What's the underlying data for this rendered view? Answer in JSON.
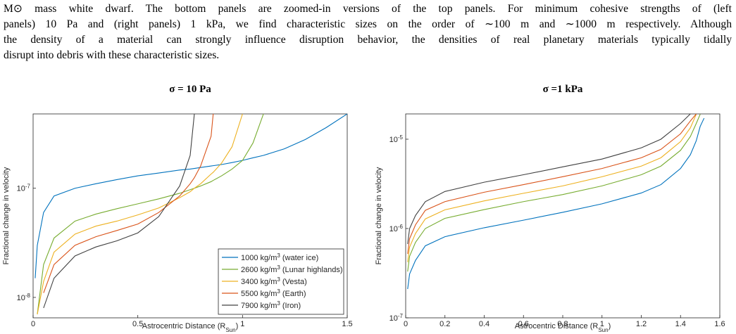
{
  "caption": [
    "M⊙ mass white dwarf. The bottom panels are zoomed-in versions of the top panels. For minimum cohesive strengths of (left",
    "panels) 10 Pa and (right panels) 1 kPa, we find characteristic sizes on the order of ∼100 m and ∼1000 m respectively. Although",
    "the density of a material can strongly influence disruption behavior, the densities of real planetary materials typically tidally",
    "disrupt into debris with these characteristic sizes."
  ],
  "chart_data": [
    {
      "type": "line",
      "title": "σ = 10 Pa",
      "xlabel": "Astrocentric Distance (RSun)",
      "ylabel": "Fractional change in velocity",
      "ylog": true,
      "legend": "lower right",
      "xlim": [
        0,
        1.5
      ],
      "xticks": [
        0,
        0.5,
        1,
        1.5
      ],
      "ylim": [
        6.5e-09,
        4.8e-07
      ],
      "yticks": [
        {
          "value": 1e-08,
          "label": "10-8"
        },
        {
          "value": 1e-07,
          "label": "10-7"
        }
      ],
      "x": [
        0.01,
        0.02,
        0.05,
        0.1,
        0.2,
        0.3,
        0.4,
        0.5,
        0.6,
        0.7,
        0.75,
        0.77,
        0.8,
        0.85,
        0.86,
        0.9,
        0.95,
        1.0,
        1.05,
        1.1,
        1.2,
        1.3,
        1.4,
        1.5
      ],
      "series": [
        {
          "name": "1000 kg/m3 (water ice)",
          "color": "#0072BD",
          "values": [
            1.5e-08,
            3e-08,
            6e-08,
            8.5e-08,
            1e-07,
            1.1e-07,
            1.2e-07,
            1.3e-07,
            1.38e-07,
            1.47e-07,
            1.5e-07,
            1.52e-07,
            1.55e-07,
            1.6e-07,
            1.61e-07,
            1.65e-07,
            1.72e-07,
            1.8e-07,
            1.9e-07,
            2e-07,
            2.3e-07,
            2.8e-07,
            3.6e-07,
            4.8e-07
          ]
        },
        {
          "name": "2600 kg/m3 (Lunar highlands)",
          "color": "#77AC30",
          "values": [
            null,
            7e-09,
            2e-08,
            3.5e-08,
            5e-08,
            5.8e-08,
            6.5e-08,
            7.2e-08,
            8e-08,
            9e-08,
            9.7e-08,
            1e-07,
            1.05e-07,
            1.15e-07,
            1.18e-07,
            1.3e-07,
            1.5e-07,
            1.8e-07,
            2.6e-07,
            4.8e-07,
            null,
            null,
            null,
            null
          ]
        },
        {
          "name": "3400 kg/m3 (Vesta)",
          "color": "#EDB120",
          "values": [
            null,
            7e-09,
            1.4e-08,
            2.6e-08,
            3.8e-08,
            4.5e-08,
            5e-08,
            5.7e-08,
            6.6e-08,
            8.2e-08,
            9.3e-08,
            1e-07,
            1.1e-07,
            1.35e-07,
            1.4e-07,
            1.7e-07,
            2.4e-07,
            4.8e-07,
            null,
            null,
            null,
            null,
            null,
            null
          ]
        },
        {
          "name": "5500 kg/m3 (Earth)",
          "color": "#D95319",
          "values": [
            null,
            null,
            1.1e-08,
            2e-08,
            3e-08,
            3.6e-08,
            4.1e-08,
            4.7e-08,
            6e-08,
            8.5e-08,
            1.1e-07,
            1.25e-07,
            1.6e-07,
            3e-07,
            4.8e-07,
            null,
            null,
            null,
            null,
            null,
            null,
            null,
            null,
            null
          ]
        },
        {
          "name": "7900 kg/m3 (Iron)",
          "color": "#404040",
          "values": [
            null,
            null,
            8e-09,
            1.5e-08,
            2.4e-08,
            2.9e-08,
            3.3e-08,
            3.9e-08,
            5.5e-08,
            1.05e-07,
            2e-07,
            4.8e-07,
            null,
            null,
            null,
            null,
            null,
            null,
            null,
            null,
            null,
            null,
            null,
            null
          ]
        }
      ]
    },
    {
      "type": "line",
      "title": "σ =1 kPa",
      "xlabel": "Astrocentric Distance (RSun)",
      "ylabel": "Fractional change in velocity",
      "ylog": true,
      "xlim": [
        0,
        1.6
      ],
      "xticks": [
        0,
        0.2,
        0.4,
        0.6,
        0.8,
        1,
        1.2,
        1.4,
        1.6
      ],
      "ylim": [
        1e-07,
        1.92e-05
      ],
      "yticks": [
        {
          "value": 1e-07,
          "label": "10-7"
        },
        {
          "value": 1e-06,
          "label": "10-6"
        },
        {
          "value": 1e-05,
          "label": "10-5"
        }
      ],
      "x": [
        0.01,
        0.02,
        0.05,
        0.1,
        0.2,
        0.4,
        0.6,
        0.8,
        1.0,
        1.2,
        1.3,
        1.4,
        1.45,
        1.48,
        1.5,
        1.52
      ],
      "series": [
        {
          "color": "#0072BD",
          "values": [
            2.1e-07,
            3.1e-07,
            4.4e-07,
            6.4e-07,
            8.1e-07,
            1.02e-06,
            1.24e-06,
            1.52e-06,
            1.89e-06,
            2.5e-06,
            3.1e-06,
            4.7e-06,
            6.7e-06,
            9.6e-06,
            1.39e-05,
            1.72e-05
          ]
        },
        {
          "color": "#77AC30",
          "values": [
            3.3e-07,
            4.9e-07,
            7e-07,
            1e-06,
            1.3e-06,
            1.63e-06,
            2e-06,
            2.4e-06,
            3e-06,
            4e-06,
            5e-06,
            7.5e-06,
            1.07e-05,
            1.5e-05,
            1.9e-05,
            null
          ]
        },
        {
          "color": "#EDB120",
          "values": [
            4.2e-07,
            6.2e-07,
            8.8e-07,
            1.28e-06,
            1.62e-06,
            2.04e-06,
            2.48e-06,
            3e-06,
            3.8e-06,
            5e-06,
            6.2e-06,
            9.4e-06,
            1.34e-05,
            1.9e-05,
            null,
            null
          ]
        },
        {
          "color": "#D95319",
          "values": [
            5.2e-07,
            7.7e-07,
            1.1e-06,
            1.6e-06,
            2e-06,
            2.55e-06,
            3.1e-06,
            3.8e-06,
            4.7e-06,
            6.2e-06,
            7.7e-06,
            1.15e-05,
            1.6e-05,
            1.92e-05,
            null,
            null
          ]
        },
        {
          "color": "#404040",
          "values": [
            6.7e-07,
            1e-06,
            1.4e-06,
            2e-06,
            2.6e-06,
            3.3e-06,
            4e-06,
            4.9e-06,
            6e-06,
            8e-06,
            1e-05,
            1.5e-05,
            1.92e-05,
            null,
            null,
            null
          ]
        }
      ]
    }
  ]
}
